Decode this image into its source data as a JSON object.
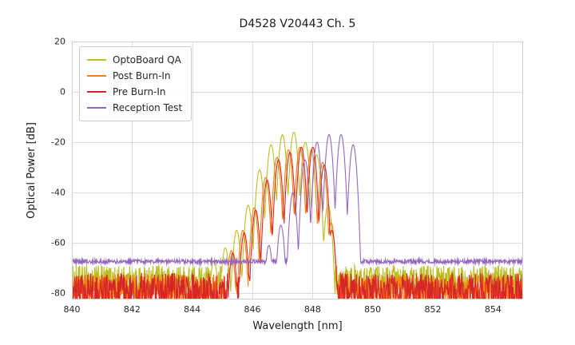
{
  "chart_data": {
    "type": "line",
    "title": "D4528 V20443 Ch. 5",
    "xlabel": "Wavelength [nm]",
    "ylabel": "Optical Power [dB]",
    "xlim": [
      840,
      855
    ],
    "ylim": [
      -82.5,
      20
    ],
    "xticks": [
      840,
      842,
      844,
      846,
      848,
      850,
      852,
      854
    ],
    "yticks": [
      20,
      0,
      -20,
      -40,
      -60,
      -80
    ],
    "grid": true,
    "grid_color": "#dcdcdc",
    "background_color": "#ffffff",
    "legend_position": "upper left",
    "series": [
      {
        "name": "OptoBoard QA",
        "color": "#bcbd22",
        "noise_floor_db": -75,
        "noise_jitter_db": 6,
        "mode_halfwidth_nm": 0.21,
        "mode_valley_depth_db": 30,
        "modes": [
          {
            "x": 844.72,
            "y": -67
          },
          {
            "x": 845.1,
            "y": -62
          },
          {
            "x": 845.48,
            "y": -55
          },
          {
            "x": 845.86,
            "y": -45
          },
          {
            "x": 846.24,
            "y": -31
          },
          {
            "x": 846.62,
            "y": -21
          },
          {
            "x": 847.0,
            "y": -17
          },
          {
            "x": 847.38,
            "y": -16
          },
          {
            "x": 847.76,
            "y": -20
          },
          {
            "x": 848.14,
            "y": -25
          },
          {
            "x": 848.52,
            "y": -45
          }
        ]
      },
      {
        "name": "Post Burn-In",
        "color": "#ff7f0e",
        "noise_floor_db": -79,
        "noise_jitter_db": 6.5,
        "mode_halfwidth_nm": 0.2,
        "mode_valley_depth_db": 30,
        "modes": [
          {
            "x": 845.3,
            "y": -63
          },
          {
            "x": 845.68,
            "y": -55
          },
          {
            "x": 846.06,
            "y": -46
          },
          {
            "x": 846.44,
            "y": -34
          },
          {
            "x": 846.82,
            "y": -26
          },
          {
            "x": 847.2,
            "y": -23
          },
          {
            "x": 847.58,
            "y": -22
          },
          {
            "x": 847.96,
            "y": -23
          },
          {
            "x": 848.34,
            "y": -28
          },
          {
            "x": 848.62,
            "y": -52
          }
        ]
      },
      {
        "name": "Pre Burn-In",
        "color": "#d62728",
        "noise_floor_db": -79,
        "noise_jitter_db": 7,
        "mode_halfwidth_nm": 0.2,
        "mode_valley_depth_db": 30,
        "modes": [
          {
            "x": 845.35,
            "y": -64
          },
          {
            "x": 845.73,
            "y": -56
          },
          {
            "x": 846.11,
            "y": -47
          },
          {
            "x": 846.49,
            "y": -35
          },
          {
            "x": 846.87,
            "y": -27
          },
          {
            "x": 847.25,
            "y": -24
          },
          {
            "x": 847.63,
            "y": -22
          },
          {
            "x": 848.01,
            "y": -22
          },
          {
            "x": 848.39,
            "y": -29
          },
          {
            "x": 848.64,
            "y": -55
          }
        ]
      },
      {
        "name": "Reception Test",
        "color": "#9467bd",
        "noise_floor_db": -67.4,
        "noise_jitter_db": 0.8,
        "mode_halfwidth_nm": 0.2,
        "mode_valley_depth_db": 30,
        "modes": [
          {
            "x": 846.55,
            "y": -61
          },
          {
            "x": 846.95,
            "y": -53
          },
          {
            "x": 847.35,
            "y": -40
          },
          {
            "x": 847.75,
            "y": -27
          },
          {
            "x": 848.15,
            "y": -20
          },
          {
            "x": 848.55,
            "y": -17
          },
          {
            "x": 848.95,
            "y": -17
          },
          {
            "x": 849.35,
            "y": -21
          }
        ]
      }
    ]
  }
}
